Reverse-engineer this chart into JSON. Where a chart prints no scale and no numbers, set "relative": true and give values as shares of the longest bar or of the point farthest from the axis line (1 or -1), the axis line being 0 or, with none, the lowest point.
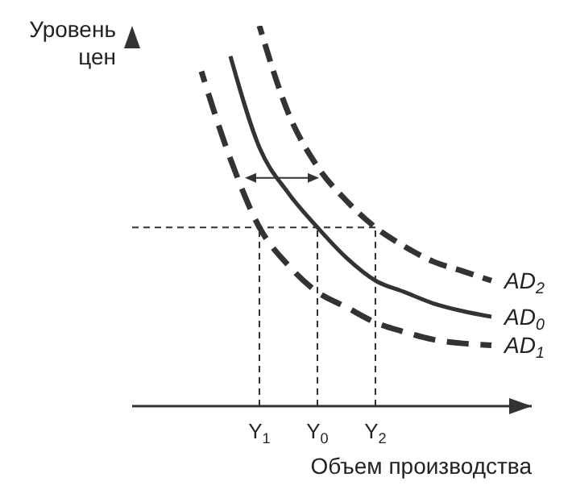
{
  "chart_data": {
    "type": "line",
    "relative": true,
    "ylabel": "Уровень цен",
    "xlabel": "Объем производства",
    "categories": [
      null,
      null,
      null,
      null,
      "Y$_{1}$",
      null,
      "Y$_{0}$",
      null,
      "Y$_{2}$",
      null,
      null,
      null,
      null,
      null
    ],
    "marker": "none",
    "series": [
      {
        "name": "AD$_{2}$",
        "color": "#333333",
        "line_style": "dashed",
        "values": [
          null,
          null,
          null,
          null,
          1.0,
          0.77,
          0.63,
          0.54,
          0.47,
          0.42,
          0.38,
          0.355,
          0.33,
          null
        ]
      },
      {
        "name": "AD$_{0}$",
        "color": "#333333",
        "line_style": "solid",
        "values": [
          null,
          null,
          null,
          0.92,
          0.68,
          0.56,
          0.47,
          0.39,
          0.33,
          0.3,
          0.27,
          0.25,
          0.235,
          null
        ]
      },
      {
        "name": "AD$_{1}$",
        "color": "#333333",
        "line_style": "dashed",
        "values": [
          null,
          null,
          0.88,
          0.65,
          0.47,
          0.37,
          0.3,
          0.26,
          0.22,
          0.195,
          0.175,
          0.165,
          0.16,
          null
        ]
      }
    ],
    "ref_lines": [
      {
        "axis": "y",
        "value": 0.47,
        "color": "#333333",
        "line_style": "dashed"
      },
      {
        "axis": "x",
        "value": "Y$_{1}$",
        "color": "#333333",
        "line_style": "dashed"
      },
      {
        "axis": "x",
        "value": "Y$_{0}$",
        "color": "#333333",
        "line_style": "dashed"
      },
      {
        "axis": "x",
        "value": "Y$_{2}$",
        "color": "#333333",
        "line_style": "dashed"
      }
    ]
  }
}
